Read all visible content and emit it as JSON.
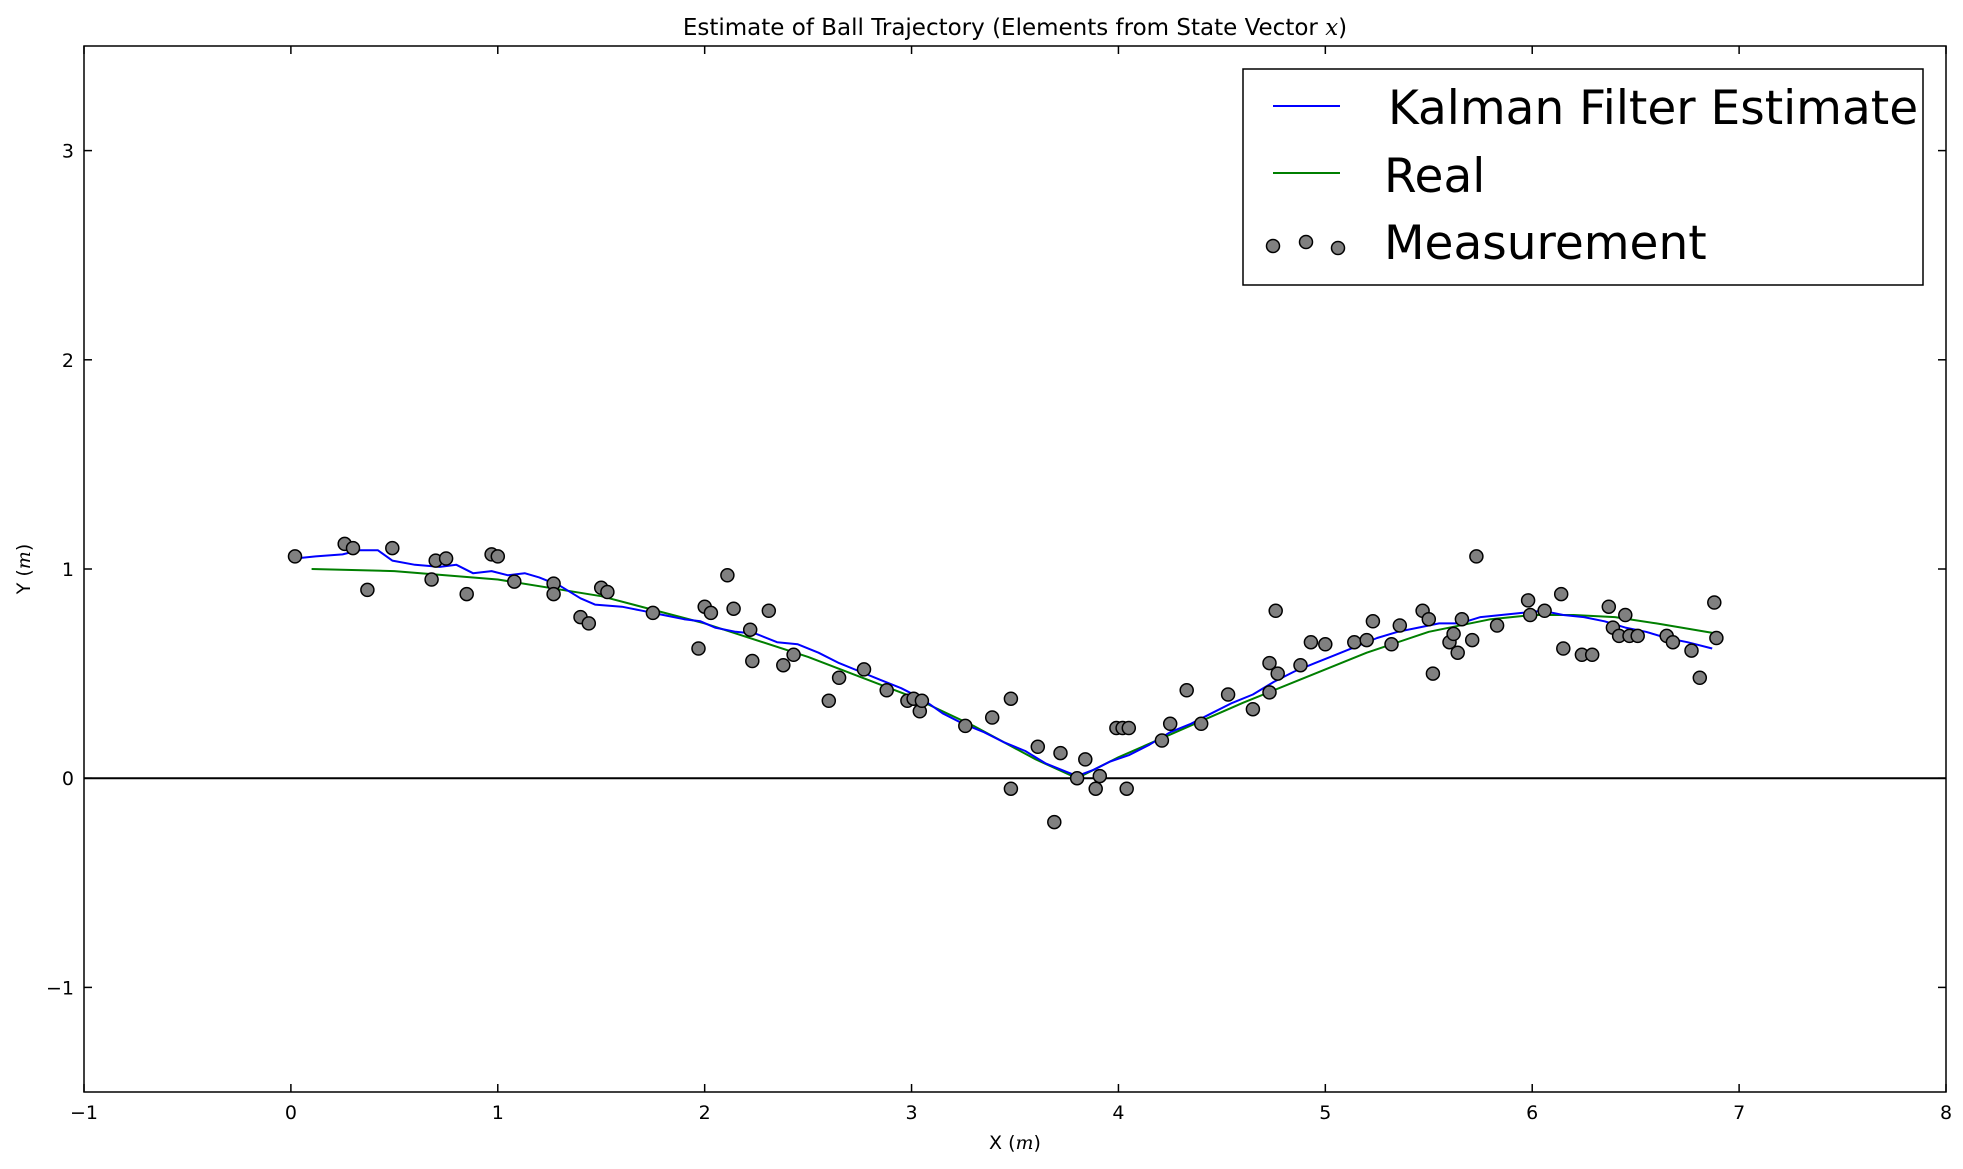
{
  "chart_data": {
    "type": "line",
    "title": "Estimate of Ball Trajectory (Elements from State Vector ",
    "title_math": "x",
    "title_close": ")",
    "xlabel": "X (",
    "xlabel_math": "m",
    "xlabel_close": ")",
    "ylabel": "Y (",
    "ylabel_math": "m",
    "ylabel_close": ")",
    "xlim": [
      -1,
      8
    ],
    "ylim": [
      -1.5,
      3.5
    ],
    "xticks": [
      -1,
      0,
      1,
      2,
      3,
      4,
      5,
      6,
      7,
      8
    ],
    "yticks": [
      -1,
      0,
      1,
      2,
      3
    ],
    "xtick_labels": [
      "−1",
      "0",
      "1",
      "2",
      "3",
      "4",
      "5",
      "6",
      "7",
      "8"
    ],
    "ytick_labels": [
      "−1",
      "0",
      "1",
      "2",
      "3"
    ],
    "grid": false,
    "legend_position": "top-right",
    "reference_line_y": 0,
    "colors": {
      "kalman": "#0000ff",
      "real": "#007f00",
      "measurement_fill": "#808080",
      "measurement_edge": "#000000",
      "zero_line": "#000000"
    },
    "series": [
      {
        "name": "Kalman Filter Estimate",
        "kind": "line",
        "color": "#0000ff",
        "points": [
          [
            0.02,
            1.05
          ],
          [
            0.12,
            1.06
          ],
          [
            0.25,
            1.07
          ],
          [
            0.33,
            1.09
          ],
          [
            0.42,
            1.09
          ],
          [
            0.49,
            1.04
          ],
          [
            0.6,
            1.02
          ],
          [
            0.72,
            1.01
          ],
          [
            0.8,
            1.02
          ],
          [
            0.88,
            0.98
          ],
          [
            0.97,
            0.99
          ],
          [
            1.05,
            0.97
          ],
          [
            1.13,
            0.98
          ],
          [
            1.2,
            0.96
          ],
          [
            1.3,
            0.92
          ],
          [
            1.4,
            0.86
          ],
          [
            1.47,
            0.83
          ],
          [
            1.6,
            0.82
          ],
          [
            1.7,
            0.8
          ],
          [
            1.8,
            0.78
          ],
          [
            1.9,
            0.76
          ],
          [
            1.98,
            0.75
          ],
          [
            2.05,
            0.72
          ],
          [
            2.15,
            0.7
          ],
          [
            2.25,
            0.69
          ],
          [
            2.35,
            0.65
          ],
          [
            2.45,
            0.64
          ],
          [
            2.55,
            0.6
          ],
          [
            2.65,
            0.55
          ],
          [
            2.75,
            0.51
          ],
          [
            2.85,
            0.47
          ],
          [
            2.95,
            0.43
          ],
          [
            3.05,
            0.38
          ],
          [
            3.15,
            0.31
          ],
          [
            3.25,
            0.26
          ],
          [
            3.35,
            0.22
          ],
          [
            3.45,
            0.17
          ],
          [
            3.55,
            0.13
          ],
          [
            3.65,
            0.07
          ],
          [
            3.75,
            0.03
          ],
          [
            3.8,
            0.01
          ],
          [
            3.88,
            0.04
          ],
          [
            3.96,
            0.08
          ],
          [
            4.05,
            0.11
          ],
          [
            4.15,
            0.16
          ],
          [
            4.25,
            0.22
          ],
          [
            4.35,
            0.26
          ],
          [
            4.45,
            0.31
          ],
          [
            4.55,
            0.36
          ],
          [
            4.65,
            0.4
          ],
          [
            4.75,
            0.46
          ],
          [
            4.85,
            0.51
          ],
          [
            4.95,
            0.55
          ],
          [
            5.05,
            0.59
          ],
          [
            5.15,
            0.63
          ],
          [
            5.25,
            0.67
          ],
          [
            5.35,
            0.7
          ],
          [
            5.45,
            0.72
          ],
          [
            5.55,
            0.74
          ],
          [
            5.65,
            0.74
          ],
          [
            5.75,
            0.77
          ],
          [
            5.85,
            0.78
          ],
          [
            5.95,
            0.79
          ],
          [
            6.05,
            0.8
          ],
          [
            6.15,
            0.78
          ],
          [
            6.25,
            0.77
          ],
          [
            6.35,
            0.75
          ],
          [
            6.45,
            0.72
          ],
          [
            6.55,
            0.7
          ],
          [
            6.65,
            0.67
          ],
          [
            6.75,
            0.65
          ],
          [
            6.87,
            0.62
          ]
        ]
      },
      {
        "name": "Real",
        "kind": "line",
        "color": "#007f00",
        "points": [
          [
            0.1,
            1.0
          ],
          [
            0.5,
            0.99
          ],
          [
            1.0,
            0.95
          ],
          [
            1.5,
            0.87
          ],
          [
            2.0,
            0.74
          ],
          [
            2.5,
            0.58
          ],
          [
            3.0,
            0.39
          ],
          [
            3.3,
            0.25
          ],
          [
            3.6,
            0.09
          ],
          [
            3.8,
            0.0
          ],
          [
            4.0,
            0.1
          ],
          [
            4.3,
            0.23
          ],
          [
            4.6,
            0.36
          ],
          [
            4.9,
            0.48
          ],
          [
            5.2,
            0.6
          ],
          [
            5.5,
            0.7
          ],
          [
            5.8,
            0.76
          ],
          [
            6.0,
            0.78
          ],
          [
            6.2,
            0.78
          ],
          [
            6.4,
            0.77
          ],
          [
            6.6,
            0.74
          ],
          [
            6.9,
            0.69
          ]
        ]
      },
      {
        "name": "Measurement",
        "kind": "scatter",
        "color": "#808080",
        "points": [
          [
            0.02,
            1.06
          ],
          [
            0.26,
            1.12
          ],
          [
            0.3,
            1.1
          ],
          [
            0.37,
            0.9
          ],
          [
            0.49,
            1.1
          ],
          [
            0.68,
            0.95
          ],
          [
            0.7,
            1.04
          ],
          [
            0.75,
            1.05
          ],
          [
            0.85,
            0.88
          ],
          [
            0.97,
            1.07
          ],
          [
            1.0,
            1.06
          ],
          [
            1.08,
            0.94
          ],
          [
            1.27,
            0.93
          ],
          [
            1.27,
            0.88
          ],
          [
            1.4,
            0.77
          ],
          [
            1.44,
            0.74
          ],
          [
            1.5,
            0.91
          ],
          [
            1.53,
            0.89
          ],
          [
            1.75,
            0.79
          ],
          [
            1.97,
            0.62
          ],
          [
            2.0,
            0.82
          ],
          [
            2.03,
            0.79
          ],
          [
            2.11,
            0.97
          ],
          [
            2.14,
            0.81
          ],
          [
            2.22,
            0.71
          ],
          [
            2.23,
            0.56
          ],
          [
            2.31,
            0.8
          ],
          [
            2.38,
            0.54
          ],
          [
            2.43,
            0.59
          ],
          [
            2.6,
            0.37
          ],
          [
            2.65,
            0.48
          ],
          [
            2.77,
            0.52
          ],
          [
            2.88,
            0.42
          ],
          [
            2.98,
            0.37
          ],
          [
            3.01,
            0.38
          ],
          [
            3.04,
            0.32
          ],
          [
            3.05,
            0.37
          ],
          [
            3.26,
            0.25
          ],
          [
            3.39,
            0.29
          ],
          [
            3.48,
            0.38
          ],
          [
            3.48,
            -0.05
          ],
          [
            3.61,
            0.15
          ],
          [
            3.69,
            -0.21
          ],
          [
            3.72,
            0.12
          ],
          [
            3.8,
            0.0
          ],
          [
            3.84,
            0.09
          ],
          [
            3.89,
            -0.05
          ],
          [
            3.91,
            0.01
          ],
          [
            3.99,
            0.24
          ],
          [
            4.02,
            0.24
          ],
          [
            4.04,
            -0.05
          ],
          [
            4.05,
            0.24
          ],
          [
            4.21,
            0.18
          ],
          [
            4.25,
            0.26
          ],
          [
            4.33,
            0.42
          ],
          [
            4.4,
            0.26
          ],
          [
            4.53,
            0.4
          ],
          [
            4.65,
            0.33
          ],
          [
            4.73,
            0.41
          ],
          [
            4.73,
            0.55
          ],
          [
            4.76,
            0.8
          ],
          [
            4.77,
            0.5
          ],
          [
            4.88,
            0.54
          ],
          [
            4.93,
            0.65
          ],
          [
            5.0,
            0.64
          ],
          [
            5.14,
            0.65
          ],
          [
            5.2,
            0.66
          ],
          [
            5.23,
            0.75
          ],
          [
            5.32,
            0.64
          ],
          [
            5.36,
            0.73
          ],
          [
            5.47,
            0.8
          ],
          [
            5.5,
            0.76
          ],
          [
            5.52,
            0.5
          ],
          [
            5.6,
            0.65
          ],
          [
            5.62,
            0.69
          ],
          [
            5.64,
            0.6
          ],
          [
            5.66,
            0.76
          ],
          [
            5.71,
            0.66
          ],
          [
            5.73,
            1.06
          ],
          [
            5.83,
            0.73
          ],
          [
            5.98,
            0.85
          ],
          [
            5.99,
            0.78
          ],
          [
            6.06,
            0.8
          ],
          [
            6.14,
            0.88
          ],
          [
            6.15,
            0.62
          ],
          [
            6.24,
            0.59
          ],
          [
            6.29,
            0.59
          ],
          [
            6.37,
            0.82
          ],
          [
            6.39,
            0.72
          ],
          [
            6.42,
            0.68
          ],
          [
            6.45,
            0.78
          ],
          [
            6.47,
            0.68
          ],
          [
            6.51,
            0.68
          ],
          [
            6.65,
            0.68
          ],
          [
            6.68,
            0.65
          ],
          [
            6.77,
            0.61
          ],
          [
            6.81,
            0.48
          ],
          [
            6.88,
            0.84
          ],
          [
            6.89,
            0.67
          ]
        ]
      }
    ]
  }
}
